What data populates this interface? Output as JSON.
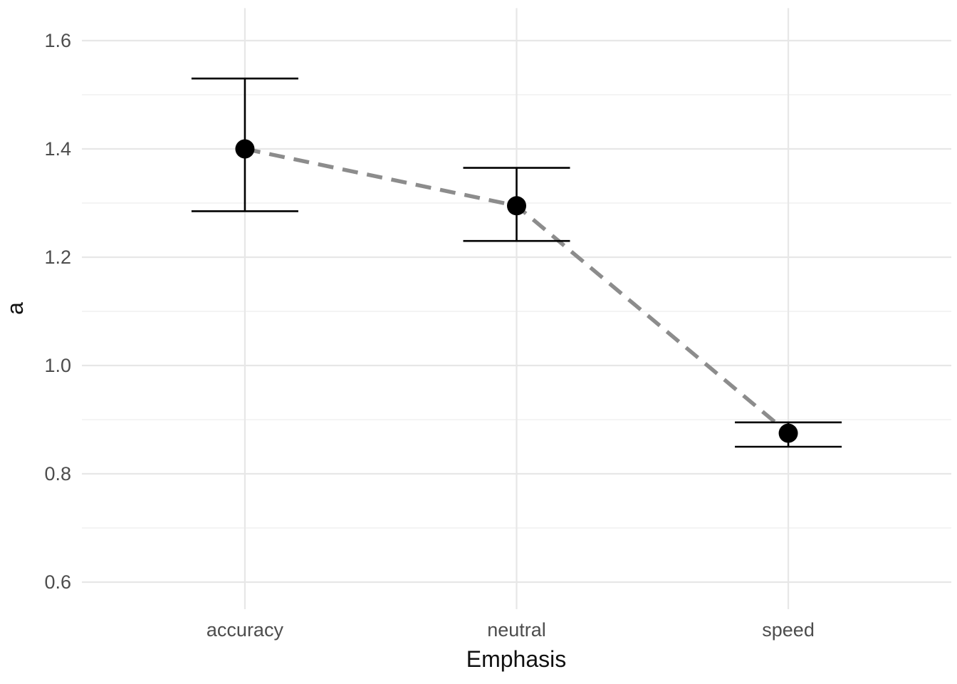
{
  "chart_data": {
    "type": "line",
    "title": "",
    "xlabel": "Emphasis",
    "ylabel": "a",
    "categories": [
      "accuracy",
      "neutral",
      "speed"
    ],
    "series": [
      {
        "name": "a",
        "values": [
          1.4,
          1.295,
          0.875
        ],
        "ci_low": [
          1.285,
          1.23,
          0.85
        ],
        "ci_high": [
          1.53,
          1.365,
          0.895
        ]
      }
    ],
    "ylim": [
      0.55,
      1.66
    ],
    "yticks": [
      0.6,
      0.8,
      1.0,
      1.2,
      1.4,
      1.6
    ],
    "yticks_minor": [
      0.7,
      0.9,
      1.1,
      1.3,
      1.5
    ],
    "grid": true,
    "legend": "none",
    "line_style": "dashed",
    "marker": "filled-circle",
    "errorbars": true,
    "colors": {
      "point": "#000000",
      "errorbar": "#000000",
      "line": "#8c8c8c",
      "grid_major": "#e7e7e7",
      "grid_minor": "#f1f1f1",
      "tick_label": "#4d4d4d",
      "axis_title": "#111111",
      "background": "#ffffff"
    }
  }
}
